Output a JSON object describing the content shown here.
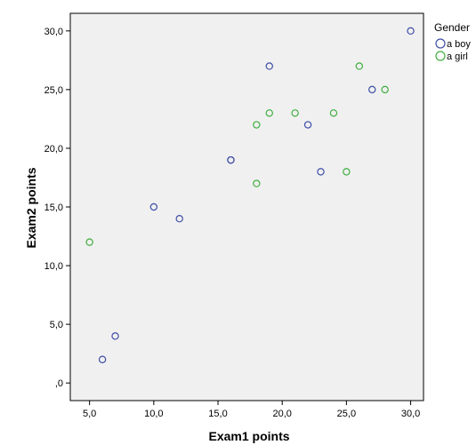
{
  "chart_data": {
    "type": "scatter",
    "xlabel": "Exam1 points",
    "ylabel": "Exam2 points",
    "xlim": [
      3.5,
      31.0
    ],
    "ylim": [
      -1.5,
      31.5
    ],
    "x_ticks": [
      5,
      10,
      15,
      20,
      25,
      30
    ],
    "x_tick_labels": [
      "5,0",
      "10,0",
      "15,0",
      "20,0",
      "25,0",
      "30,0"
    ],
    "y_ticks": [
      0,
      5,
      10,
      15,
      20,
      25,
      30
    ],
    "y_tick_labels": [
      ",0",
      "5,0",
      "10,0",
      "15,0",
      "20,0",
      "25,0",
      "30,0"
    ],
    "grid": false,
    "background": "#f0f0f0",
    "legend": {
      "title": "Gender",
      "placement": "right"
    },
    "series": [
      {
        "name": "a boy",
        "color": "#3e4ea6",
        "marker": "hollow-circle",
        "points": [
          {
            "x": 6,
            "y": 2
          },
          {
            "x": 7,
            "y": 4
          },
          {
            "x": 10,
            "y": 15
          },
          {
            "x": 12,
            "y": 14
          },
          {
            "x": 16,
            "y": 19
          },
          {
            "x": 16,
            "y": 19
          },
          {
            "x": 19,
            "y": 27
          },
          {
            "x": 22,
            "y": 22
          },
          {
            "x": 23,
            "y": 18
          },
          {
            "x": 27,
            "y": 25
          },
          {
            "x": 30,
            "y": 30
          }
        ]
      },
      {
        "name": "a girl",
        "color": "#3fae3f",
        "marker": "hollow-circle",
        "points": [
          {
            "x": 5,
            "y": 12
          },
          {
            "x": 18,
            "y": 17
          },
          {
            "x": 18,
            "y": 22
          },
          {
            "x": 19,
            "y": 23
          },
          {
            "x": 21,
            "y": 23
          },
          {
            "x": 24,
            "y": 23
          },
          {
            "x": 25,
            "y": 18
          },
          {
            "x": 26,
            "y": 27
          },
          {
            "x": 28,
            "y": 25
          }
        ]
      }
    ]
  }
}
